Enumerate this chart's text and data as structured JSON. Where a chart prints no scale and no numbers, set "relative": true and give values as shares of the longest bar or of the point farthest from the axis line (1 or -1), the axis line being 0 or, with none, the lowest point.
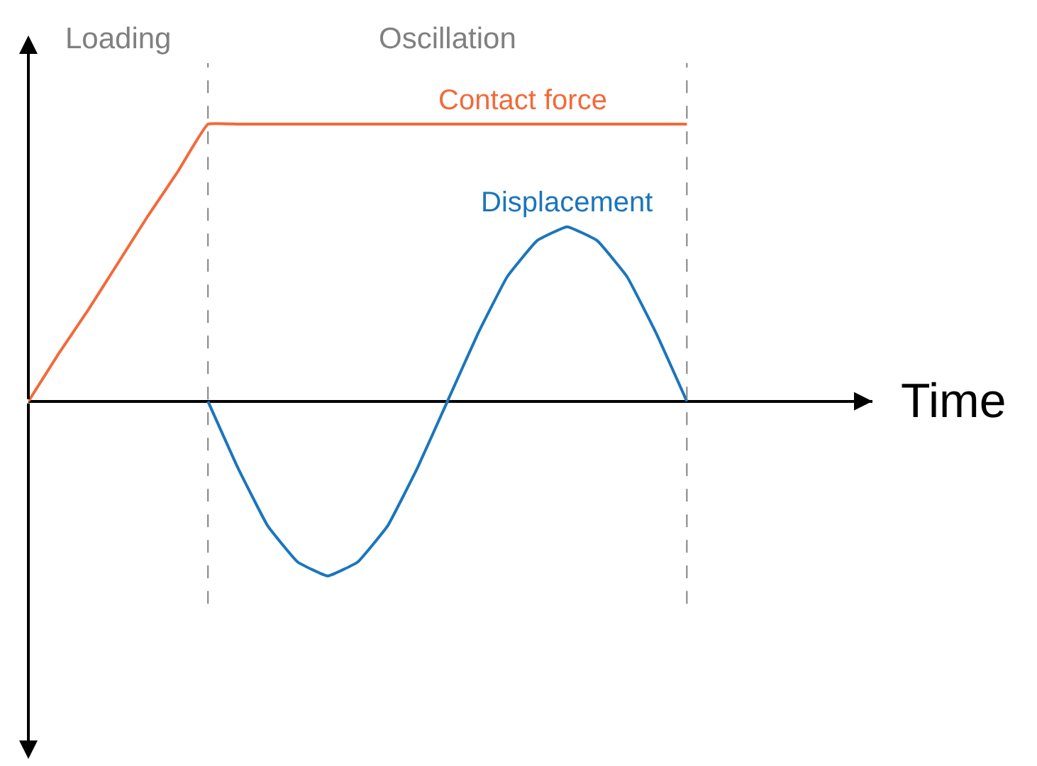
{
  "chart_data": {
    "type": "line",
    "relative": true,
    "xlabel": "Time",
    "legend": false,
    "grid": "x",
    "marker": "none",
    "line_style": "solid",
    "annotations": [
      "Loading",
      "Oscillation"
    ],
    "categories": [
      null,
      null,
      null,
      null,
      null,
      null,
      null,
      null,
      null,
      null,
      null,
      null,
      null,
      null,
      null,
      null,
      null,
      null,
      null,
      null,
      null,
      null,
      null
    ],
    "series": [
      {
        "name": "Contact force",
        "color": "#f26a3a",
        "values": [
          0,
          0.17,
          0.33,
          0.5,
          0.67,
          0.83,
          1,
          1,
          1,
          1,
          1,
          1,
          1,
          1,
          1,
          1,
          1,
          1,
          1,
          1,
          1,
          1,
          1
        ]
      },
      {
        "name": "Displacement",
        "color": "#1b75bc",
        "values": [
          null,
          null,
          null,
          null,
          null,
          null,
          0,
          -0.24,
          -0.45,
          -0.58,
          -0.63,
          -0.58,
          -0.45,
          -0.24,
          0,
          0.24,
          0.45,
          0.58,
          0.63,
          0.58,
          0.45,
          0.24,
          0
        ]
      }
    ]
  }
}
